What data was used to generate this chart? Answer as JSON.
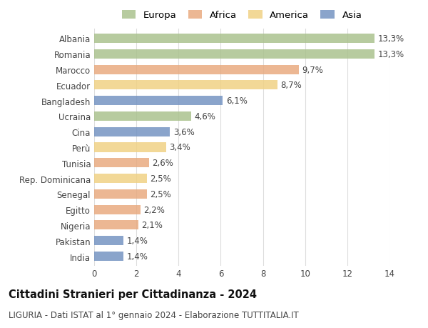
{
  "categories": [
    "Albania",
    "Romania",
    "Marocco",
    "Ecuador",
    "Bangladesh",
    "Ucraina",
    "Cina",
    "Perù",
    "Tunisia",
    "Rep. Dominicana",
    "Senegal",
    "Egitto",
    "Nigeria",
    "Pakistan",
    "India"
  ],
  "values": [
    13.3,
    13.3,
    9.7,
    8.7,
    6.1,
    4.6,
    3.6,
    3.4,
    2.6,
    2.5,
    2.5,
    2.2,
    2.1,
    1.4,
    1.4
  ],
  "labels": [
    "13,3%",
    "13,3%",
    "9,7%",
    "8,7%",
    "6,1%",
    "4,6%",
    "3,6%",
    "3,4%",
    "2,6%",
    "2,5%",
    "2,5%",
    "2,2%",
    "2,1%",
    "1,4%",
    "1,4%"
  ],
  "continents": [
    "Europa",
    "Europa",
    "Africa",
    "America",
    "Asia",
    "Europa",
    "Asia",
    "America",
    "Africa",
    "America",
    "Africa",
    "Africa",
    "Africa",
    "Asia",
    "Asia"
  ],
  "colors": {
    "Europa": "#a8c08a",
    "Africa": "#e8a87c",
    "America": "#f0d080",
    "Asia": "#7090c0"
  },
  "title": "Cittadini Stranieri per Cittadinanza - 2024",
  "subtitle": "LIGURIA - Dati ISTAT al 1° gennaio 2024 - Elaborazione TUTTITALIA.IT",
  "xlim": [
    0,
    14
  ],
  "xticks": [
    0,
    2,
    4,
    6,
    8,
    10,
    12,
    14
  ],
  "background_color": "#ffffff",
  "grid_color": "#dddddd",
  "bar_height": 0.6,
  "label_fontsize": 8.5,
  "tick_fontsize": 8.5,
  "title_fontsize": 10.5,
  "subtitle_fontsize": 8.5,
  "legend_fontsize": 9.5
}
